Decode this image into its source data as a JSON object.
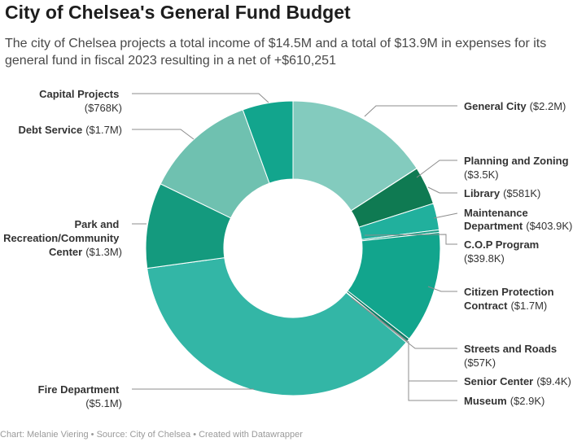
{
  "title": "City of Chelsea's General Fund Budget",
  "subtitle": "The city of Chelsea projects a total income of $14.5M and a total of $13.9M in expenses for its general fund in fiscal 2023 resulting in a net of +$610,251",
  "footer": "Chart: Melanie Viering • Source: City of Chelsea • Created with Datawrapper",
  "chart_data": {
    "type": "pie",
    "donut": true,
    "title": "City of Chelsea's General Fund Budget",
    "slices": [
      {
        "name": "General City",
        "value": 2200000,
        "value_label": "($2.2M)",
        "color": "#83cbbe"
      },
      {
        "name": "Planning and Zoning",
        "value": 3500,
        "value_label": "($3.5K)",
        "color": "#0f7a52"
      },
      {
        "name": "Library",
        "value": 581000,
        "value_label": "($581K)",
        "color": "#0f7a52"
      },
      {
        "name": "Maintenance Department",
        "value": 403900,
        "value_label": "($403.9K)",
        "color": "#21b09d"
      },
      {
        "name": "C.O.P Program",
        "value": 39800,
        "value_label": "($39.8K)",
        "color": "#1a9e87"
      },
      {
        "name": "Citizen Protection Contract",
        "value": 1700000,
        "value_label": "($1.7M)",
        "color": "#12a58d"
      },
      {
        "name": "Streets and Roads",
        "value": 57000,
        "value_label": "($57K)",
        "color": "#0d7d66"
      },
      {
        "name": "Senior Center",
        "value": 9400,
        "value_label": "($9.4K)",
        "color": "#0d7d66"
      },
      {
        "name": "Museum",
        "value": 2900,
        "value_label": "($2.9K)",
        "color": "#0d7d66"
      },
      {
        "name": "Fire Department",
        "value": 5100000,
        "value_label": "($5.1M)",
        "color": "#33b6a6"
      },
      {
        "name": "Park and Recreation/Community Center",
        "value": 1300000,
        "value_label": "($1.3M)",
        "color": "#149a7e"
      },
      {
        "name": "Debt Service",
        "value": 1700000,
        "value_label": "($1.7M)",
        "color": "#6fc1b0"
      },
      {
        "name": "Capital Projects",
        "value": 768000,
        "value_label": "($768K)",
        "color": "#12a58d"
      }
    ]
  }
}
